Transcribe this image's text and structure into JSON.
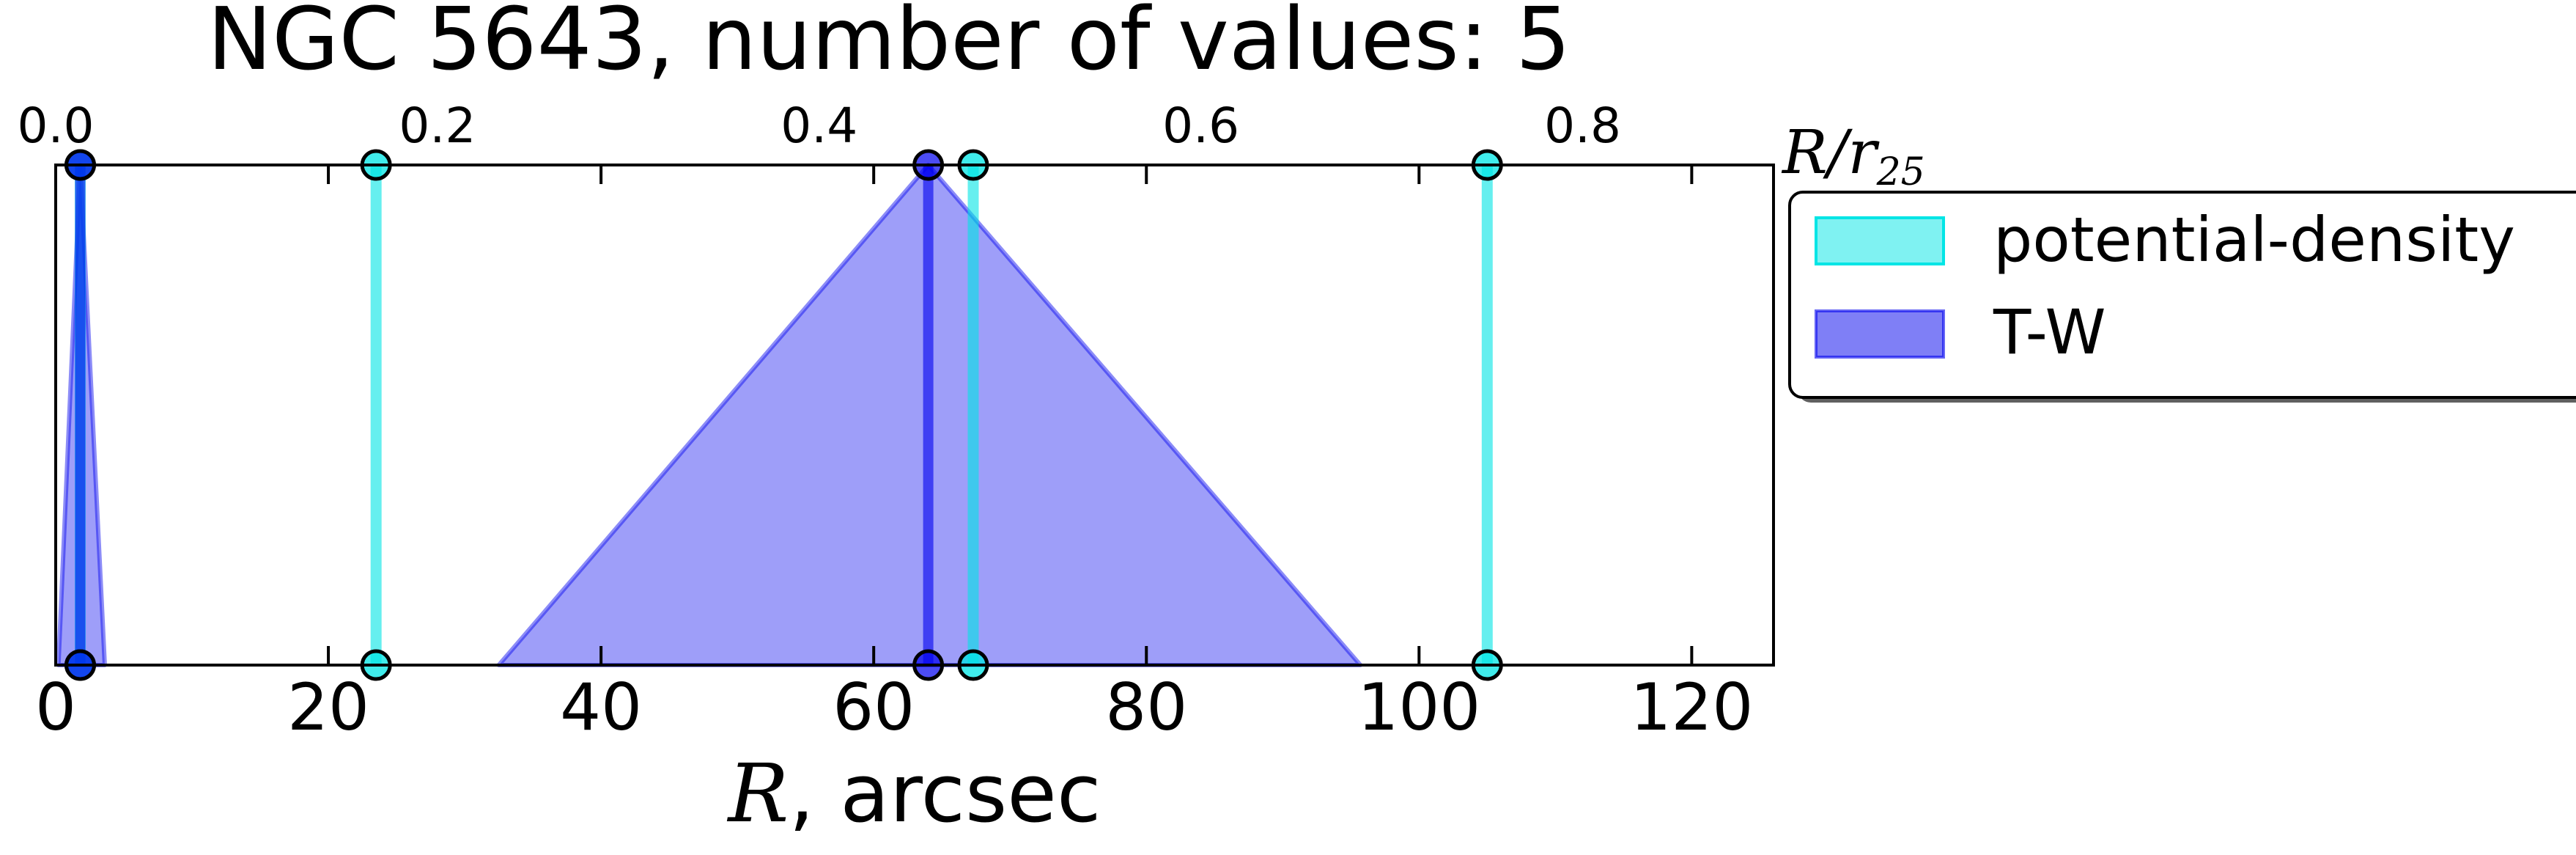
{
  "chart_data": {
    "type": "line",
    "title": "NGC 5643, number of values: 5",
    "xlabel_math": "R",
    "xlabel_unit": ", arcsec",
    "top_xlabel_math": "R/r",
    "top_xlabel_sub": "25",
    "xlim": [
      0,
      126
    ],
    "top_xlim": [
      0,
      0.9
    ],
    "xticks": [
      0,
      20,
      40,
      60,
      80,
      100,
      120
    ],
    "top_xticks": [
      "0.0",
      "0.2",
      "0.4",
      "0.6",
      "0.8"
    ],
    "top_xtick_values": [
      0.0,
      0.2,
      0.4,
      0.6,
      0.8
    ],
    "ylim": [
      0,
      1
    ],
    "grid": false,
    "legend_position": "outside right, top",
    "series": [
      {
        "name": "potential-density",
        "color": "#00e5e5",
        "markers": [
          1.8,
          23.5,
          67.3,
          105.0
        ]
      },
      {
        "name": "T-W",
        "color": "#0000ee",
        "markers": [
          1.8,
          64.0
        ],
        "triangles": [
          {
            "center": 1.8,
            "left": 0.2,
            "right": 3.6
          },
          {
            "center": 64.0,
            "left": 32.5,
            "right": 95.7
          }
        ]
      }
    ]
  }
}
